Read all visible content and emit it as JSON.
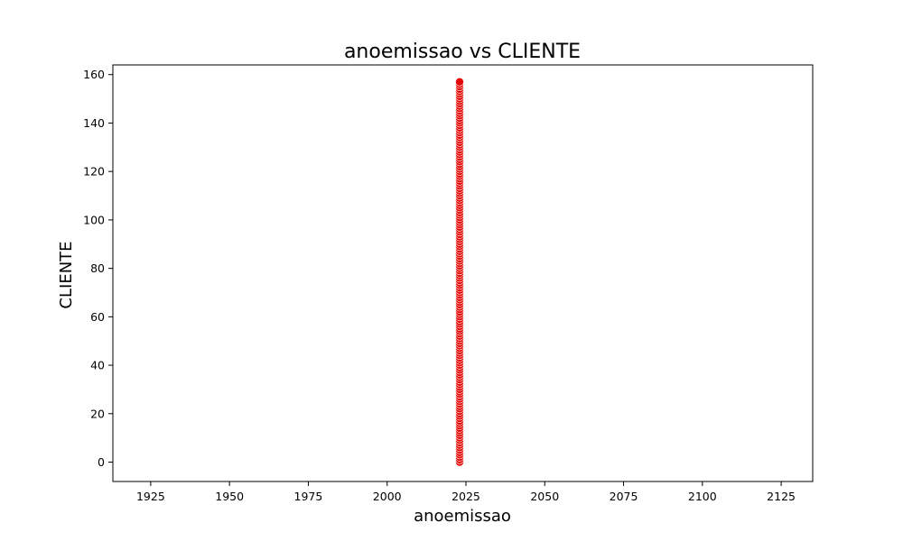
{
  "chart_data": {
    "type": "scatter",
    "title": "anoemissao vs CLIENTE",
    "xlabel": "anoemissao",
    "ylabel": "CLIENTE",
    "xlim": [
      1913,
      2135
    ],
    "ylim": [
      -8,
      164
    ],
    "xticks": [
      1925,
      1950,
      1975,
      2000,
      2025,
      2050,
      2075,
      2100,
      2125
    ],
    "yticks": [
      0,
      20,
      40,
      60,
      80,
      100,
      120,
      140,
      160
    ],
    "grid": false,
    "marker_color": "#e60000",
    "marker_edge_color": "#ffffff",
    "series": [
      {
        "x_constant": 2023,
        "y": [
          0,
          1,
          2,
          3,
          4,
          5,
          6,
          7,
          8,
          9,
          10,
          11,
          12,
          13,
          14,
          15,
          16,
          17,
          18,
          19,
          20,
          21,
          22,
          23,
          24,
          25,
          26,
          27,
          28,
          29,
          30,
          31,
          32,
          33,
          34,
          35,
          36,
          37,
          38,
          39,
          40,
          41,
          42,
          43,
          44,
          45,
          46,
          47,
          48,
          49,
          50,
          51,
          52,
          53,
          54,
          55,
          56,
          57,
          58,
          59,
          60,
          61,
          62,
          63,
          64,
          65,
          66,
          67,
          68,
          69,
          70,
          71,
          72,
          73,
          74,
          75,
          76,
          77,
          78,
          79,
          80,
          81,
          82,
          83,
          84,
          85,
          86,
          87,
          88,
          89,
          90,
          91,
          92,
          93,
          94,
          95,
          96,
          97,
          98,
          99,
          100,
          101,
          102,
          103,
          104,
          105,
          106,
          107,
          108,
          109,
          110,
          111,
          112,
          113,
          114,
          115,
          116,
          117,
          118,
          119,
          120,
          121,
          122,
          123,
          124,
          125,
          126,
          127,
          128,
          129,
          130,
          131,
          132,
          133,
          134,
          135,
          136,
          137,
          138,
          139,
          140,
          141,
          142,
          143,
          144,
          145,
          146,
          147,
          148,
          149,
          150,
          151,
          152,
          153,
          154,
          155,
          156,
          157
        ]
      }
    ]
  }
}
